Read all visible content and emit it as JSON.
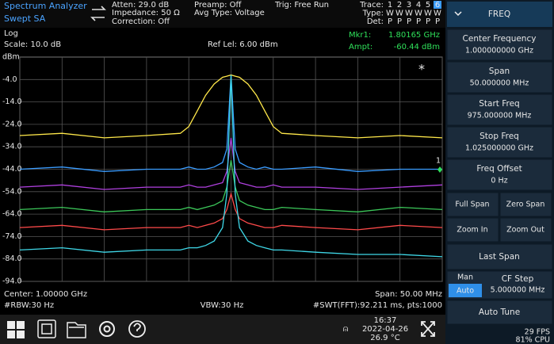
{
  "status": {
    "app": "Spectrum Analyzer",
    "mode": "Swept SA",
    "atten": "Atten: 29.0 dB",
    "impedance": "Impedance: 50 Ω",
    "correction": "Correction: Off",
    "preamp": "Preamp: Off",
    "avg_type": "Avg Type: Voltage",
    "trigger": "Trig: Free Run",
    "trace_table": {
      "rows": [
        "Trace:",
        "Type:",
        "Det:"
      ],
      "numbers": [
        "1",
        "2",
        "3",
        "4",
        "5",
        "6"
      ],
      "number_colors": [
        "#ffe84a",
        "#3fd8e8",
        "#d050ff",
        "#3a9cff",
        "#ff4a4a",
        "#ffffff"
      ],
      "types": [
        "W",
        "W",
        "W",
        "W",
        "W",
        "W"
      ],
      "dets": [
        "P",
        "P",
        "P",
        "P",
        "P",
        "P"
      ]
    }
  },
  "plot": {
    "type": "line",
    "scale_type": "Log",
    "scale": "Scale: 10.0 dB",
    "ref_level": "Ref Lel: 6.00 dBm",
    "unit": "dBm",
    "center": "Center: 1.00000 GHz",
    "span": "Span: 50.00 MHz",
    "rbw": "#RBW:30 Hz",
    "vbw": "VBW:30 Hz",
    "swt": "#SWT(FFT):92.211 ms, pts:1000",
    "xlim": [
      975,
      1025
    ],
    "xticks": [
      975,
      980,
      985,
      990,
      995,
      1000,
      1005,
      1010,
      1015,
      1020,
      1025
    ],
    "ylim": [
      -94,
      6
    ],
    "yticks": [
      {
        "value": -4,
        "label": "-4.0"
      },
      {
        "value": -14,
        "label": "-14.0"
      },
      {
        "value": -24,
        "label": "-24.0"
      },
      {
        "value": -34,
        "label": "-34.0"
      },
      {
        "value": -44,
        "label": "-44.0"
      },
      {
        "value": -54,
        "label": "-54.0"
      },
      {
        "value": -64,
        "label": "-64.0"
      },
      {
        "value": -74,
        "label": "-74.0"
      },
      {
        "value": -84,
        "label": "-84.0"
      },
      {
        "value": -94,
        "label": "-94.0"
      }
    ],
    "grid": true,
    "x": [
      975,
      980,
      985,
      990,
      994,
      995,
      996,
      997,
      998,
      999,
      999.5,
      1000,
      1000.5,
      1001,
      1002,
      1003,
      1004,
      1005,
      1006,
      1010,
      1015,
      1020,
      1025
    ],
    "series": [
      {
        "color": "#ff4a4a",
        "values": [
          -70,
          -69,
          -71,
          -70,
          -70,
          -69,
          -70,
          -69,
          -68,
          -66,
          -62,
          -55,
          -62,
          -66,
          -68,
          -69,
          -70,
          -70,
          -69,
          -70,
          -71,
          -69,
          -70
        ]
      },
      {
        "color": "#3cc85a",
        "values": [
          -62,
          -61,
          -63,
          -62,
          -62,
          -61,
          -62,
          -61,
          -60,
          -58,
          -52,
          -40,
          -52,
          -58,
          -60,
          -61,
          -62,
          -62,
          -61,
          -62,
          -63,
          -61,
          -62
        ]
      },
      {
        "color": "#b040e0",
        "values": [
          -52,
          -51,
          -53,
          -52,
          -52,
          -51,
          -52,
          -52,
          -51,
          -50,
          -45,
          -30,
          -45,
          -50,
          -51,
          -52,
          -52,
          -51,
          -52,
          -52,
          -53,
          -52,
          -51
        ]
      },
      {
        "color": "#3a9cff",
        "values": [
          -44,
          -43,
          -45,
          -44,
          -44,
          -43,
          -44,
          -44,
          -43,
          -41,
          -35,
          -2,
          -35,
          -41,
          -43,
          -44,
          -43,
          -44,
          -44,
          -43,
          -45,
          -44,
          -44
        ]
      },
      {
        "color": "#ffe84a",
        "values": [
          -29,
          -28,
          -30,
          -29,
          -28,
          -25,
          -18,
          -11,
          -6,
          -3,
          -2.5,
          -2,
          -2.5,
          -3,
          -6,
          -11,
          -18,
          -25,
          -28,
          -29,
          -30,
          -29,
          -30
        ]
      },
      {
        "color": "#3fd8e8",
        "values": [
          -80,
          -79,
          -81,
          -80,
          -80,
          -79,
          -79,
          -78,
          -76,
          -70,
          -55,
          -2,
          -55,
          -70,
          -76,
          -78,
          -79,
          -80,
          -80,
          -81,
          -82,
          -82,
          -83
        ]
      }
    ],
    "marker_number": "1",
    "star": "*"
  },
  "marker": {
    "label": "Mkr1:",
    "freq": "1.80165 GHz",
    "ampt_label": "Ampt:",
    "ampt": "-60.44 dBm"
  },
  "menu": {
    "title": "FREQ",
    "items": [
      {
        "label": "Center Frequency",
        "value": "1.000000000 GHz"
      },
      {
        "label": "Span",
        "value": "50.000000 MHz"
      },
      {
        "label": "Start Freq",
        "value": "975.000000 MHz"
      },
      {
        "label": "Stop Freq",
        "value": "1.025000000 GHz"
      },
      {
        "label": "Freq Offset",
        "value": "0 Hz"
      }
    ],
    "pairs": [
      [
        "Full Span",
        "Zero Span"
      ],
      [
        "Zoom In",
        "Zoom Out"
      ]
    ],
    "last_span": "Last Span",
    "man": "Man",
    "auto": "Auto",
    "cf_step": {
      "label": "CF Step",
      "value": "5.000000 MHz"
    },
    "auto_tune": "Auto Tune"
  },
  "taskbar": {
    "time": "16:37",
    "date": "2022-04-26",
    "temp": "26.9 °C"
  },
  "perf": {
    "fps": "29 FPS",
    "cpu": "81% CPU"
  }
}
